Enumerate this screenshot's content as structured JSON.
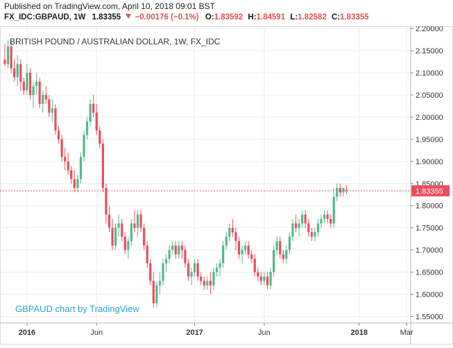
{
  "header": {
    "published": "Published on TradingView.com, April 10, 2018 09:01 BST",
    "symbol": "FX_IDC:GBPAUD, 1W",
    "last": "1.83355",
    "change": "−0.00176 (−0.1%)",
    "o_label": "O:",
    "o": "1.83592",
    "h_label": "H:",
    "h": "1.84591",
    "l_label": "L:",
    "l": "1.82582",
    "c_label": "C:",
    "c": "1.83355"
  },
  "watermark": "GBPAUD chart by TradingView",
  "price_tag": "1.83355",
  "colors": {
    "up": "#53b987",
    "down": "#eb4d5c",
    "grid": "#e8ecf0",
    "price_line": "#eb4d5c"
  },
  "chart_data": {
    "type": "candlestick",
    "title": "BRITISH POUND / AUSTRALIAN DOLLAR, 1W, FX_IDC",
    "current_price": 1.83355,
    "ylim": [
      1.535,
      2.205
    ],
    "y_ticks": [
      "1.55000",
      "1.60000",
      "1.65000",
      "1.70000",
      "1.75000",
      "1.80000",
      "1.85000",
      "1.90000",
      "1.95000",
      "2.00000",
      "2.05000",
      "2.10000",
      "2.15000",
      "2.20000"
    ],
    "x_ticks": [
      {
        "label": "2016",
        "index": 7
      },
      {
        "label": "Jun",
        "index": 29
      },
      {
        "label": "2017",
        "index": 60
      },
      {
        "label": "Jun",
        "index": 82
      },
      {
        "label": "2018",
        "index": 112
      },
      {
        "label": "Mar",
        "index": 127
      }
    ],
    "candles": [
      [
        2.13,
        2.165,
        2.115,
        2.12
      ],
      [
        2.12,
        2.175,
        2.11,
        2.16
      ],
      [
        2.16,
        2.17,
        2.1,
        2.11
      ],
      [
        2.11,
        2.13,
        2.08,
        2.09
      ],
      [
        2.09,
        2.14,
        2.07,
        2.12
      ],
      [
        2.12,
        2.13,
        2.06,
        2.08
      ],
      [
        2.08,
        2.09,
        2.05,
        2.06
      ],
      [
        2.06,
        2.12,
        2.05,
        2.1
      ],
      [
        2.1,
        2.11,
        2.04,
        2.05
      ],
      [
        2.05,
        2.08,
        2.02,
        2.07
      ],
      [
        2.07,
        2.1,
        2.05,
        2.08
      ],
      [
        2.08,
        2.09,
        2.02,
        2.03
      ],
      [
        2.03,
        2.06,
        2.01,
        2.05
      ],
      [
        2.05,
        2.07,
        2.03,
        2.04
      ],
      [
        2.04,
        2.05,
        2.0,
        2.01
      ],
      [
        2.01,
        2.04,
        1.99,
        2.02
      ],
      [
        2.02,
        2.03,
        1.96,
        1.97
      ],
      [
        1.97,
        1.98,
        1.94,
        1.95
      ],
      [
        1.95,
        1.96,
        1.9,
        1.91
      ],
      [
        1.91,
        1.93,
        1.88,
        1.9
      ],
      [
        1.9,
        1.92,
        1.87,
        1.88
      ],
      [
        1.88,
        1.89,
        1.85,
        1.86
      ],
      [
        1.86,
        1.88,
        1.83,
        1.84
      ],
      [
        1.84,
        1.87,
        1.83,
        1.86
      ],
      [
        1.86,
        1.92,
        1.85,
        1.91
      ],
      [
        1.91,
        1.97,
        1.9,
        1.96
      ],
      [
        1.96,
        2.0,
        1.95,
        1.99
      ],
      [
        1.99,
        2.04,
        1.98,
        2.03
      ],
      [
        2.03,
        2.05,
        2.0,
        2.01
      ],
      [
        2.01,
        2.03,
        1.96,
        1.97
      ],
      [
        1.97,
        1.98,
        1.93,
        1.94
      ],
      [
        1.94,
        1.95,
        1.83,
        1.84
      ],
      [
        1.84,
        1.85,
        1.76,
        1.78
      ],
      [
        1.78,
        1.8,
        1.74,
        1.75
      ],
      [
        1.75,
        1.77,
        1.7,
        1.71
      ],
      [
        1.71,
        1.76,
        1.7,
        1.75
      ],
      [
        1.75,
        1.78,
        1.73,
        1.76
      ],
      [
        1.76,
        1.77,
        1.72,
        1.73
      ],
      [
        1.73,
        1.74,
        1.69,
        1.7
      ],
      [
        1.7,
        1.73,
        1.68,
        1.72
      ],
      [
        1.72,
        1.77,
        1.71,
        1.76
      ],
      [
        1.76,
        1.79,
        1.74,
        1.75
      ],
      [
        1.75,
        1.79,
        1.73,
        1.78
      ],
      [
        1.78,
        1.79,
        1.74,
        1.75
      ],
      [
        1.75,
        1.76,
        1.7,
        1.71
      ],
      [
        1.71,
        1.72,
        1.66,
        1.67
      ],
      [
        1.67,
        1.68,
        1.62,
        1.63
      ],
      [
        1.63,
        1.65,
        1.57,
        1.58
      ],
      [
        1.58,
        1.63,
        1.57,
        1.62
      ],
      [
        1.62,
        1.65,
        1.6,
        1.63
      ],
      [
        1.63,
        1.68,
        1.62,
        1.67
      ],
      [
        1.67,
        1.69,
        1.65,
        1.68
      ],
      [
        1.68,
        1.71,
        1.67,
        1.7
      ],
      [
        1.7,
        1.72,
        1.69,
        1.71
      ],
      [
        1.71,
        1.72,
        1.68,
        1.69
      ],
      [
        1.69,
        1.72,
        1.68,
        1.71
      ],
      [
        1.71,
        1.72,
        1.68,
        1.7
      ],
      [
        1.7,
        1.71,
        1.66,
        1.67
      ],
      [
        1.67,
        1.68,
        1.63,
        1.64
      ],
      [
        1.64,
        1.66,
        1.62,
        1.65
      ],
      [
        1.65,
        1.68,
        1.64,
        1.67
      ],
      [
        1.67,
        1.68,
        1.63,
        1.64
      ],
      [
        1.64,
        1.65,
        1.62,
        1.63
      ],
      [
        1.63,
        1.64,
        1.61,
        1.62
      ],
      [
        1.62,
        1.64,
        1.61,
        1.63
      ],
      [
        1.63,
        1.65,
        1.6,
        1.62
      ],
      [
        1.62,
        1.66,
        1.61,
        1.65
      ],
      [
        1.65,
        1.67,
        1.64,
        1.66
      ],
      [
        1.66,
        1.68,
        1.64,
        1.67
      ],
      [
        1.67,
        1.72,
        1.66,
        1.71
      ],
      [
        1.71,
        1.74,
        1.7,
        1.73
      ],
      [
        1.73,
        1.76,
        1.72,
        1.75
      ],
      [
        1.75,
        1.77,
        1.73,
        1.74
      ],
      [
        1.74,
        1.75,
        1.7,
        1.72
      ],
      [
        1.72,
        1.73,
        1.68,
        1.69
      ],
      [
        1.69,
        1.71,
        1.67,
        1.7
      ],
      [
        1.7,
        1.72,
        1.69,
        1.71
      ],
      [
        1.71,
        1.72,
        1.68,
        1.69
      ],
      [
        1.69,
        1.7,
        1.67,
        1.68
      ],
      [
        1.68,
        1.69,
        1.64,
        1.65
      ],
      [
        1.65,
        1.66,
        1.63,
        1.64
      ],
      [
        1.64,
        1.65,
        1.62,
        1.63
      ],
      [
        1.63,
        1.65,
        1.62,
        1.64
      ],
      [
        1.64,
        1.65,
        1.61,
        1.62
      ],
      [
        1.62,
        1.66,
        1.61,
        1.65
      ],
      [
        1.65,
        1.71,
        1.64,
        1.7
      ],
      [
        1.7,
        1.73,
        1.69,
        1.72
      ],
      [
        1.72,
        1.73,
        1.68,
        1.69
      ],
      [
        1.69,
        1.7,
        1.67,
        1.68
      ],
      [
        1.68,
        1.71,
        1.67,
        1.7
      ],
      [
        1.7,
        1.74,
        1.69,
        1.73
      ],
      [
        1.73,
        1.77,
        1.72,
        1.76
      ],
      [
        1.76,
        1.78,
        1.74,
        1.75
      ],
      [
        1.75,
        1.77,
        1.73,
        1.76
      ],
      [
        1.76,
        1.79,
        1.75,
        1.78
      ],
      [
        1.78,
        1.79,
        1.75,
        1.76
      ],
      [
        1.76,
        1.77,
        1.73,
        1.74
      ],
      [
        1.74,
        1.75,
        1.72,
        1.73
      ],
      [
        1.73,
        1.75,
        1.72,
        1.74
      ],
      [
        1.74,
        1.77,
        1.73,
        1.76
      ],
      [
        1.76,
        1.78,
        1.75,
        1.77
      ],
      [
        1.77,
        1.79,
        1.76,
        1.78
      ],
      [
        1.78,
        1.79,
        1.76,
        1.77
      ],
      [
        1.77,
        1.78,
        1.75,
        1.76
      ],
      [
        1.76,
        1.84,
        1.75,
        1.82
      ],
      [
        1.82,
        1.85,
        1.81,
        1.84
      ],
      [
        1.84,
        1.85,
        1.82,
        1.83
      ],
      [
        1.83,
        1.84,
        1.82,
        1.84
      ],
      [
        1.8359,
        1.8459,
        1.8258,
        1.8336
      ]
    ]
  }
}
